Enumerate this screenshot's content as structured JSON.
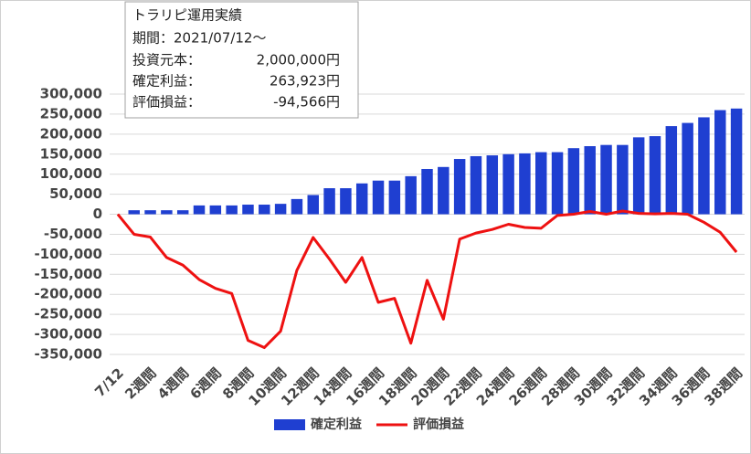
{
  "chart_data": {
    "type": "bar-line",
    "info_box": {
      "title": "トラリピ運用実績",
      "period": "期間：2021/07/12～",
      "rows": [
        {
          "label": "投資元本：",
          "value": "2,000,000円"
        },
        {
          "label": "確定利益：",
          "value": "263,923円"
        },
        {
          "label": "評価損益：",
          "value": "-94,566円"
        }
      ]
    },
    "categories": [
      "7/12",
      null,
      "2週間",
      null,
      "4週間",
      null,
      "6週間",
      null,
      "8週間",
      null,
      "10週間",
      null,
      "12週間",
      null,
      "14週間",
      null,
      "16週間",
      null,
      "18週間",
      null,
      "20週間",
      null,
      "22週間",
      null,
      "24週間",
      null,
      "26週間",
      null,
      "28週間",
      null,
      "30週間",
      null,
      "32週間",
      null,
      "34週間",
      null,
      "36週間",
      null,
      "38週間"
    ],
    "series": [
      {
        "name": "確定利益",
        "type": "bar",
        "color": "#1f3fd1",
        "values": [
          0,
          10000,
          10000,
          10000,
          10000,
          22000,
          22000,
          22000,
          24000,
          24000,
          26000,
          38000,
          48000,
          65000,
          65000,
          77000,
          84000,
          84000,
          95000,
          113000,
          118000,
          138000,
          145000,
          147000,
          150000,
          152000,
          155000,
          155000,
          165000,
          170000,
          173000,
          173000,
          192000,
          195000,
          220000,
          228000,
          242000,
          260000,
          263923
        ]
      },
      {
        "name": "評価損益",
        "type": "line",
        "color": "#ee1111",
        "values": [
          0,
          -50000,
          -57000,
          -108000,
          -127000,
          -163000,
          -185000,
          -198000,
          -315000,
          -333000,
          -292000,
          -140000,
          -58000,
          -112000,
          -170000,
          -108000,
          -220000,
          -210000,
          -322000,
          -165000,
          -262000,
          -62000,
          -47000,
          -38000,
          -25000,
          -33000,
          -35000,
          -3000,
          0,
          7000,
          0,
          8000,
          2000,
          1000,
          2000,
          0,
          -20000,
          -45000,
          -94566
        ]
      }
    ],
    "ylim": [
      -350000,
      300000
    ],
    "yticks": [
      {
        "value": -350000,
        "label": "-350,000"
      },
      {
        "value": -300000,
        "label": "-300,000"
      },
      {
        "value": -250000,
        "label": "-250,000"
      },
      {
        "value": -200000,
        "label": "-200,000"
      },
      {
        "value": -150000,
        "label": "-150,000"
      },
      {
        "value": -100000,
        "label": "-100,000"
      },
      {
        "value": -50000,
        "label": "-50,000"
      },
      0,
      {
        "value": 50000,
        "label": "50,000"
      },
      {
        "value": 100000,
        "label": "100,000"
      },
      {
        "value": 150000,
        "label": "150,000"
      },
      {
        "value": 200000,
        "label": "200,000"
      },
      {
        "value": 250000,
        "label": "250,000"
      },
      {
        "value": 300000,
        "label": "300,000"
      }
    ],
    "grid": true,
    "legend": "bottom"
  }
}
